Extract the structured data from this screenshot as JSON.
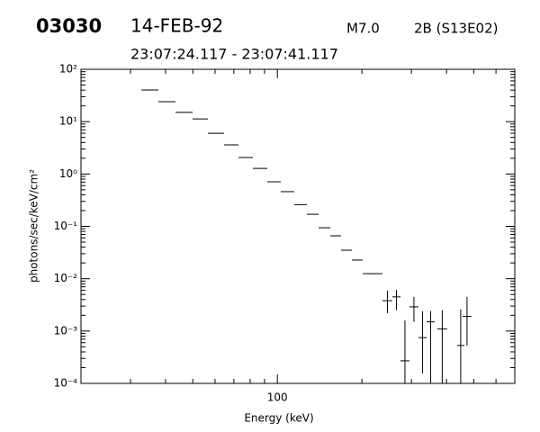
{
  "chart_data": {
    "type": "errorbar",
    "header": [
      "03030",
      "14-FEB-92",
      "M7.0",
      "2B (S13E02)"
    ],
    "subtitle": "23:07:24.117 - 23:07:41.117",
    "x_label": "Energy (keV)",
    "y_label": "photons/sec/keV/cm²",
    "x_log": true,
    "y_log": true,
    "xlim": [
      20,
      700
    ],
    "ylim": [
      0.0001,
      100
    ],
    "xticks": [
      100
    ],
    "xminorticks": [
      20,
      30,
      40,
      50,
      60,
      70,
      80,
      90,
      200,
      300,
      400,
      500,
      600,
      700
    ],
    "yticks": [
      {
        "value": 0.0001,
        "label": "10⁻⁴"
      },
      {
        "value": 0.001,
        "label": "10⁻³"
      },
      {
        "value": 0.01,
        "label": "10⁻²"
      },
      {
        "value": 0.1,
        "label": "10⁻¹"
      },
      {
        "value": 1,
        "label": "10⁰"
      },
      {
        "value": 10,
        "label": "10¹"
      },
      {
        "value": 100,
        "label": "10²"
      }
    ],
    "yminorticks": [
      0.0002,
      0.0003,
      0.0004,
      0.0005,
      0.0006,
      0.0007,
      0.0008,
      0.0009,
      0.002,
      0.003,
      0.004,
      0.005,
      0.006,
      0.007,
      0.008,
      0.009,
      0.02,
      0.03,
      0.04,
      0.05,
      0.06,
      0.07,
      0.08,
      0.09,
      0.2,
      0.3,
      0.4,
      0.5,
      0.6,
      0.7,
      0.8,
      0.9,
      2,
      3,
      4,
      5,
      6,
      7,
      8,
      9,
      20,
      30,
      40,
      50,
      60,
      70,
      80,
      90
    ],
    "color": "#000000",
    "x_lo": [
      32.8,
      37.7,
      43.4,
      49.9,
      56.6,
      64.6,
      72.7,
      81.8,
      92.1,
      102.8,
      114.8,
      127.4,
      140.2,
      154.3,
      168.5,
      184.1,
      201.2,
      218.2,
      236.6,
      256.6,
      274.2,
      295.2,
      317.8,
      339.6,
      371,
      436,
      456
    ],
    "x_hi": [
      37.7,
      43.4,
      49.9,
      56.6,
      64.6,
      72.7,
      81.8,
      92.1,
      102.8,
      114.8,
      127.4,
      140.2,
      154.3,
      168.5,
      184.1,
      201.2,
      218.2,
      236.6,
      256.6,
      274.2,
      295.2,
      317.8,
      339.6,
      363.0,
      402,
      463,
      491
    ],
    "values": [
      40.2,
      24.0,
      15.0,
      11.3,
      6.0,
      3.6,
      2.07,
      1.28,
      0.71,
      0.46,
      0.26,
      0.17,
      0.094,
      0.066,
      0.035,
      0.0227,
      0.0125,
      0.0125,
      0.0038,
      0.0045,
      0.00027,
      0.0029,
      0.00075,
      0.0015,
      0.0011,
      0.00053,
      0.0019
    ],
    "y_lo": [
      null,
      null,
      null,
      null,
      null,
      null,
      null,
      null,
      null,
      null,
      null,
      null,
      null,
      null,
      null,
      null,
      null,
      null,
      0.0022,
      0.0025,
      0.0001,
      0.0015,
      0.000155,
      0.0001,
      0.0001,
      0.0001,
      0.00053
    ],
    "y_hi": [
      null,
      null,
      null,
      null,
      null,
      null,
      null,
      null,
      null,
      null,
      null,
      null,
      null,
      null,
      null,
      null,
      null,
      null,
      0.0059,
      0.0061,
      0.0016,
      0.0045,
      0.0024,
      0.0024,
      0.0025,
      0.0026,
      0.0045
    ]
  }
}
